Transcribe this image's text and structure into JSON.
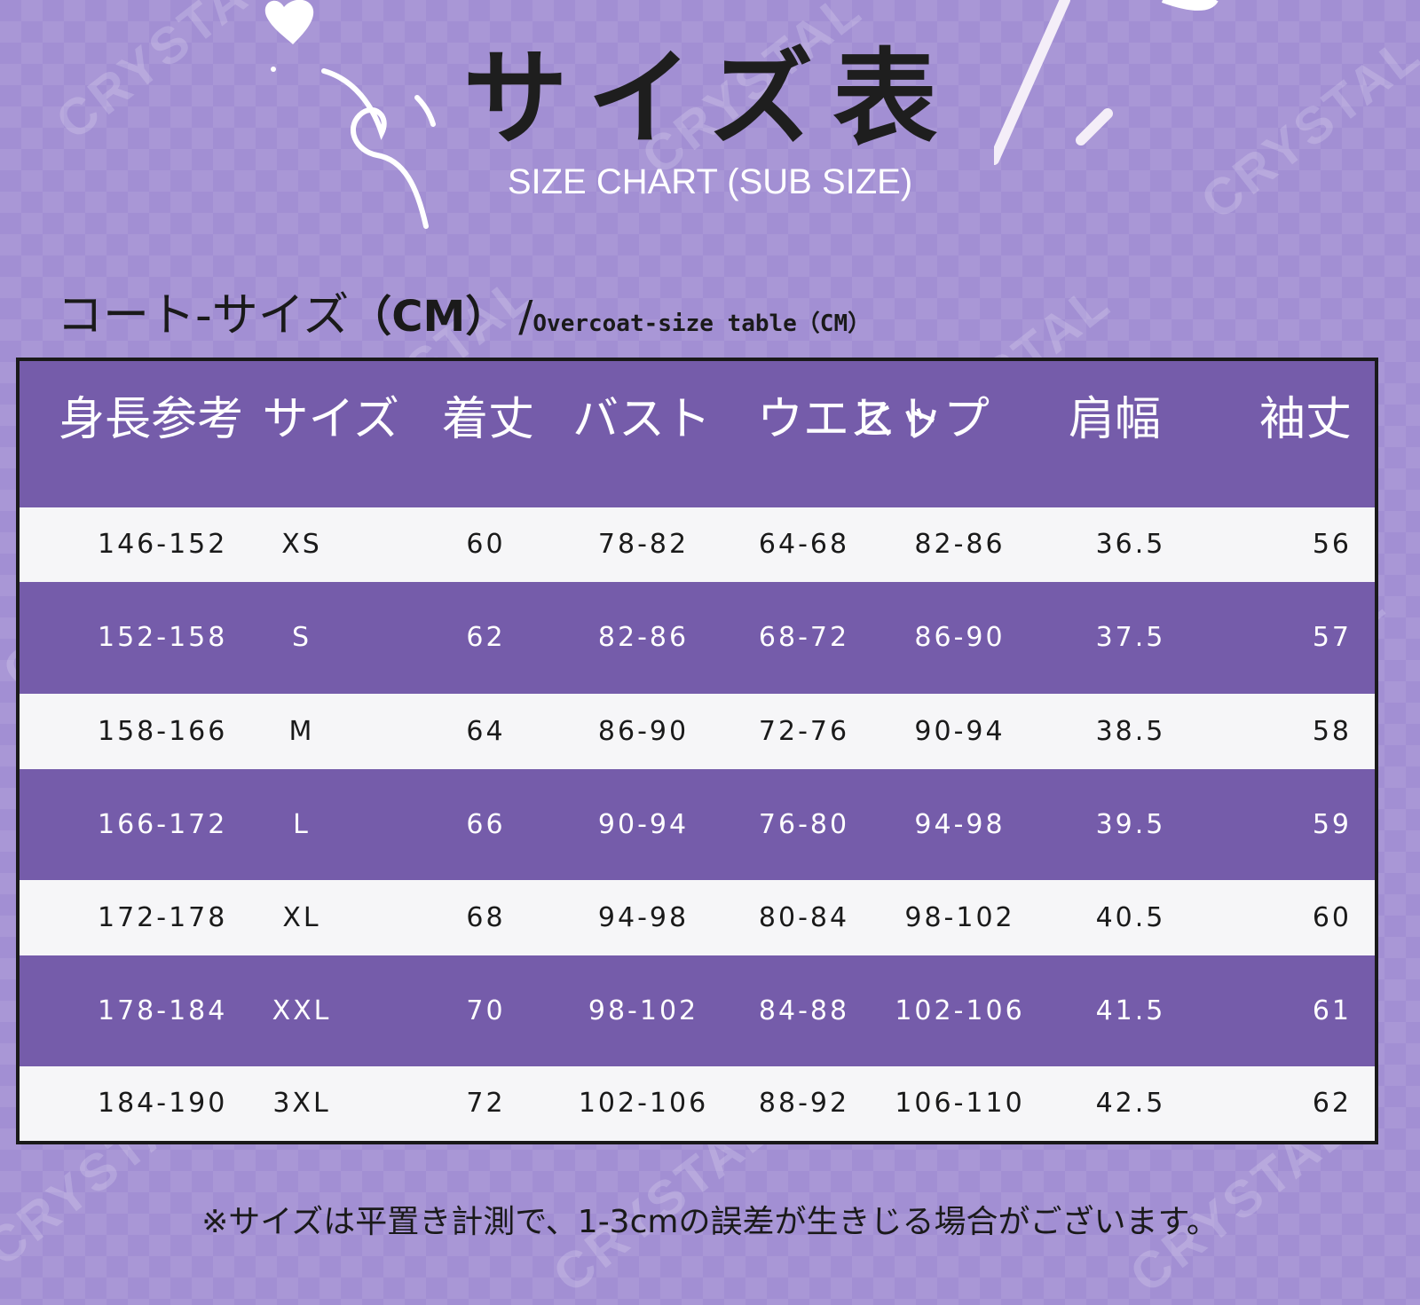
{
  "title": {
    "main": "サイズ表",
    "subtitle": "SIZE CHART (SUB SIZE)"
  },
  "caption": {
    "japanese": "コート-サイズ",
    "unit": "（CM）",
    "slash": "/",
    "english": "Overcoat-size table（CM）"
  },
  "table": {
    "headers": [
      "身長参考",
      "サイズ",
      "着丈",
      "バスト",
      "ウエスト",
      "ヒップ",
      "肩幅",
      "袖丈"
    ],
    "rows": [
      [
        "146-152",
        "XS",
        "60",
        "78-82",
        "64-68",
        "82-86",
        "36.5",
        "56"
      ],
      [
        "152-158",
        "S",
        "62",
        "82-86",
        "68-72",
        "86-90",
        "37.5",
        "57"
      ],
      [
        "158-166",
        "M",
        "64",
        "86-90",
        "72-76",
        "90-94",
        "38.5",
        "58"
      ],
      [
        "166-172",
        "L",
        "66",
        "90-94",
        "76-80",
        "94-98",
        "39.5",
        "59"
      ],
      [
        "172-178",
        "XL",
        "68",
        "94-98",
        "80-84",
        "98-102",
        "40.5",
        "60"
      ],
      [
        "178-184",
        "XXL",
        "70",
        "98-102",
        "84-88",
        "102-106",
        "41.5",
        "61"
      ],
      [
        "184-190",
        "3XL",
        "72",
        "102-106",
        "88-92",
        "106-110",
        "42.5",
        "62"
      ]
    ]
  },
  "footnote": "※サイズは平置き計測で、1-3cmの誤差が生きじる場合がございます。",
  "watermark": "CRYSTAL",
  "colors": {
    "background": "#a28fd3",
    "header_purple": "#755caa",
    "row_light": "#f6f6f8",
    "text_dark": "#1a1a1a",
    "text_light": "#ffffff"
  },
  "icons": {
    "heart": "heart-icon",
    "swirl": "swirl-doodle-icon",
    "sparkle": "sparkle-icon"
  }
}
